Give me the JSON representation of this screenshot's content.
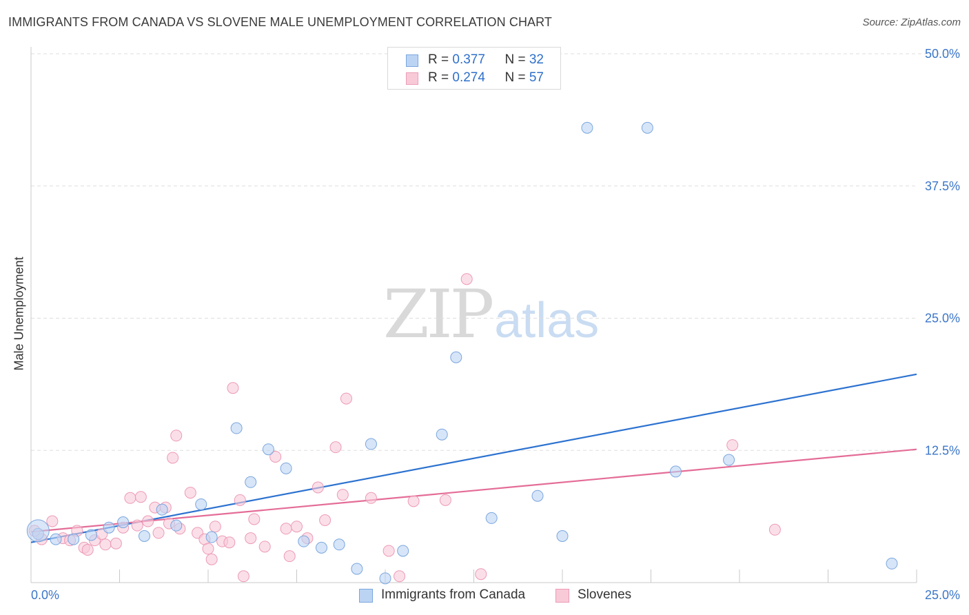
{
  "header": {
    "title": "IMMIGRANTS FROM CANADA VS SLOVENE MALE UNEMPLOYMENT CORRELATION CHART",
    "source": "Source: ZipAtlas.com"
  },
  "watermark": {
    "zip": "ZIP",
    "atlas": "atlas"
  },
  "legend": {
    "rows": [
      {
        "r_label": "R = ",
        "r_value": "0.377",
        "n_label": "N = ",
        "n_value": "32"
      },
      {
        "r_label": "R = ",
        "r_value": "0.274",
        "n_label": "N = ",
        "n_value": "57"
      }
    ]
  },
  "colors": {
    "blue_fill": "#bcd4f3",
    "blue_stroke": "#7aa6de",
    "blue_line": "#2c72d0",
    "pink_fill": "#f8cad8",
    "pink_stroke": "#ec9ab5",
    "pink_line": "#e46c97",
    "tick_label": "#3b76c8",
    "grid": "#dddddd"
  },
  "chart_data": {
    "type": "scatter",
    "title": "IMMIGRANTS FROM CANADA VS SLOVENE MALE UNEMPLOYMENT CORRELATION CHART",
    "xlabel": "",
    "ylabel": "Male Unemployment",
    "xlim": [
      0,
      25
    ],
    "ylim": [
      0,
      50
    ],
    "x_tick_labels": [
      "0.0%",
      "25.0%"
    ],
    "y_ticks": [
      12.5,
      25.0,
      37.5,
      50.0
    ],
    "y_tick_labels": [
      "12.5%",
      "25.0%",
      "37.5%",
      "50.0%"
    ],
    "grid": "horizontal dashed",
    "legend_position": "top-center",
    "series": [
      {
        "name": "Immigrants from Canada",
        "color": "#bcd4f3",
        "points": [
          [
            0.2,
            4.6
          ],
          [
            0.7,
            4.1
          ],
          [
            1.2,
            4.1
          ],
          [
            1.7,
            4.5
          ],
          [
            2.2,
            5.2
          ],
          [
            2.6,
            5.7
          ],
          [
            3.2,
            4.4
          ],
          [
            3.7,
            6.9
          ],
          [
            4.1,
            5.4
          ],
          [
            4.8,
            7.4
          ],
          [
            5.1,
            4.3
          ],
          [
            5.8,
            14.6
          ],
          [
            6.2,
            9.5
          ],
          [
            6.7,
            12.6
          ],
          [
            7.2,
            10.8
          ],
          [
            7.7,
            3.9
          ],
          [
            8.2,
            3.3
          ],
          [
            8.7,
            3.6
          ],
          [
            9.2,
            1.3
          ],
          [
            9.6,
            13.1
          ],
          [
            10.0,
            0.4
          ],
          [
            10.5,
            3.0
          ],
          [
            11.6,
            14.0
          ],
          [
            12.0,
            21.3
          ],
          [
            13.0,
            6.1
          ],
          [
            14.3,
            8.2
          ],
          [
            15.0,
            4.4
          ],
          [
            15.7,
            43.0
          ],
          [
            17.4,
            43.0
          ],
          [
            18.2,
            10.5
          ],
          [
            19.7,
            11.6
          ],
          [
            24.3,
            1.8
          ]
        ]
      },
      {
        "name": "Slovenes",
        "color": "#f8cad8",
        "points": [
          [
            0.1,
            4.9
          ],
          [
            0.3,
            4.1
          ],
          [
            0.6,
            5.8
          ],
          [
            0.9,
            4.2
          ],
          [
            1.1,
            4.0
          ],
          [
            1.3,
            4.9
          ],
          [
            1.5,
            3.3
          ],
          [
            1.6,
            3.1
          ],
          [
            1.8,
            4.0
          ],
          [
            2.0,
            4.6
          ],
          [
            2.1,
            3.6
          ],
          [
            2.4,
            3.7
          ],
          [
            2.6,
            5.2
          ],
          [
            2.8,
            8.0
          ],
          [
            3.0,
            5.4
          ],
          [
            3.1,
            8.1
          ],
          [
            3.3,
            5.8
          ],
          [
            3.5,
            7.1
          ],
          [
            3.6,
            4.7
          ],
          [
            3.8,
            7.1
          ],
          [
            3.9,
            5.6
          ],
          [
            4.0,
            11.8
          ],
          [
            4.1,
            13.9
          ],
          [
            4.2,
            5.1
          ],
          [
            4.5,
            8.5
          ],
          [
            4.7,
            4.7
          ],
          [
            4.9,
            4.1
          ],
          [
            5.0,
            3.2
          ],
          [
            5.1,
            2.2
          ],
          [
            5.2,
            5.3
          ],
          [
            5.4,
            3.9
          ],
          [
            5.6,
            3.8
          ],
          [
            5.7,
            18.4
          ],
          [
            5.9,
            7.8
          ],
          [
            6.0,
            0.6
          ],
          [
            6.2,
            4.2
          ],
          [
            6.3,
            6.0
          ],
          [
            6.6,
            3.4
          ],
          [
            6.9,
            11.9
          ],
          [
            7.2,
            5.1
          ],
          [
            7.3,
            2.5
          ],
          [
            7.5,
            5.3
          ],
          [
            7.8,
            4.2
          ],
          [
            8.1,
            9.0
          ],
          [
            8.3,
            5.9
          ],
          [
            8.6,
            12.8
          ],
          [
            8.8,
            8.3
          ],
          [
            8.9,
            17.4
          ],
          [
            9.6,
            8.0
          ],
          [
            10.1,
            3.0
          ],
          [
            10.4,
            0.6
          ],
          [
            10.8,
            7.7
          ],
          [
            11.7,
            7.8
          ],
          [
            12.3,
            28.7
          ],
          [
            12.7,
            0.8
          ],
          [
            19.8,
            13.0
          ],
          [
            21.0,
            5.0
          ]
        ]
      }
    ],
    "trendlines": [
      {
        "series": "Immigrants from Canada",
        "x": [
          0,
          25
        ],
        "y": [
          3.8,
          19.7
        ]
      },
      {
        "series": "Slovenes",
        "x": [
          0,
          25
        ],
        "y": [
          4.8,
          12.6
        ]
      }
    ]
  },
  "bottom_legend": [
    "Immigrants from Canada",
    "Slovenes"
  ]
}
